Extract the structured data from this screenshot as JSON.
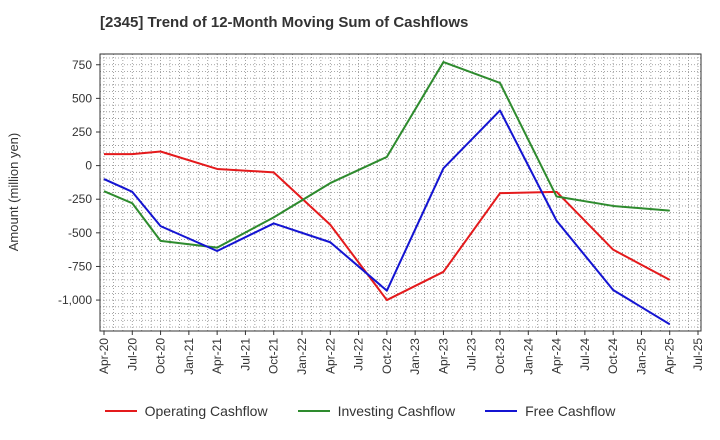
{
  "chart_data": {
    "type": "line",
    "title": "[2345]  Trend of 12-Month Moving Sum of Cashflows",
    "xlabel": "",
    "ylabel": "Amount (million yen)",
    "ylim": [
      -1230,
      830
    ],
    "y_ticks": [
      -1000,
      -750,
      -500,
      -250,
      0,
      250,
      500,
      750
    ],
    "y_tick_labels": [
      "-1,000",
      "-750",
      "-500",
      "-250",
      "0",
      "250",
      "500",
      "750"
    ],
    "x_ticks": [
      "Apr-20",
      "Jul-20",
      "Oct-20",
      "Jan-21",
      "Apr-21",
      "Jul-21",
      "Oct-21",
      "Jan-22",
      "Apr-22",
      "Jul-22",
      "Oct-22",
      "Jan-23",
      "Apr-23",
      "Jul-23",
      "Oct-23",
      "Jan-24",
      "Apr-24",
      "Jul-24",
      "Oct-24",
      "Jan-25",
      "Apr-25",
      "Jul-25"
    ],
    "grid": true,
    "legend_position": "bottom",
    "series": [
      {
        "name": "Operating Cashflow",
        "color": "#e41a1c",
        "x": [
          "Apr-20",
          "Jul-20",
          "Oct-20",
          "Apr-21",
          "Oct-21",
          "Apr-22",
          "Oct-22",
          "Apr-23",
          "Oct-23",
          "Apr-24",
          "Oct-24",
          "Apr-25"
        ],
        "values": [
          85,
          85,
          105,
          -25,
          -50,
          -440,
          -1000,
          -790,
          -205,
          -195,
          -625,
          -850
        ]
      },
      {
        "name": "Investing Cashflow",
        "color": "#2e8b2e",
        "x": [
          "Apr-20",
          "Jul-20",
          "Oct-20",
          "Apr-21",
          "Oct-21",
          "Apr-22",
          "Oct-22",
          "Apr-23",
          "Oct-23",
          "Apr-24",
          "Oct-24",
          "Apr-25"
        ],
        "values": [
          -190,
          -280,
          -560,
          -610,
          -385,
          -130,
          65,
          770,
          615,
          -230,
          -300,
          -335
        ]
      },
      {
        "name": "Free Cashflow",
        "color": "#1414d2",
        "x": [
          "Apr-20",
          "Jul-20",
          "Oct-20",
          "Apr-21",
          "Oct-21",
          "Apr-22",
          "Oct-22",
          "Apr-23",
          "Oct-23",
          "Apr-24",
          "Oct-24",
          "Apr-25"
        ],
        "values": [
          -100,
          -195,
          -450,
          -635,
          -430,
          -570,
          -930,
          -20,
          410,
          -410,
          -925,
          -1180
        ]
      }
    ]
  }
}
